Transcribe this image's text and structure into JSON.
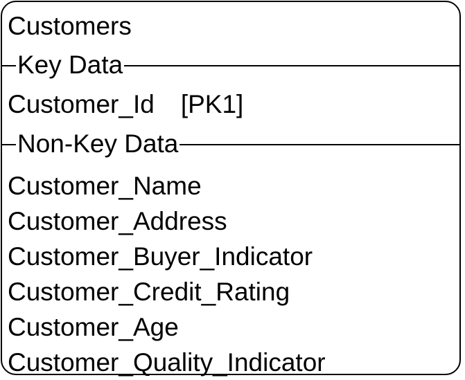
{
  "entity": {
    "title": "Customers",
    "key_section_label": "Key Data",
    "key_attribute": {
      "name": "Customer_Id",
      "marker": "[PK1]"
    },
    "nonkey_section_label": "Non-Key Data",
    "attributes": [
      "Customer_Name",
      "Customer_Address",
      "Customer_Buyer_Indicator",
      "Customer_Credit_Rating",
      "Customer_Age",
      "Customer_Quality_Indicator"
    ]
  }
}
